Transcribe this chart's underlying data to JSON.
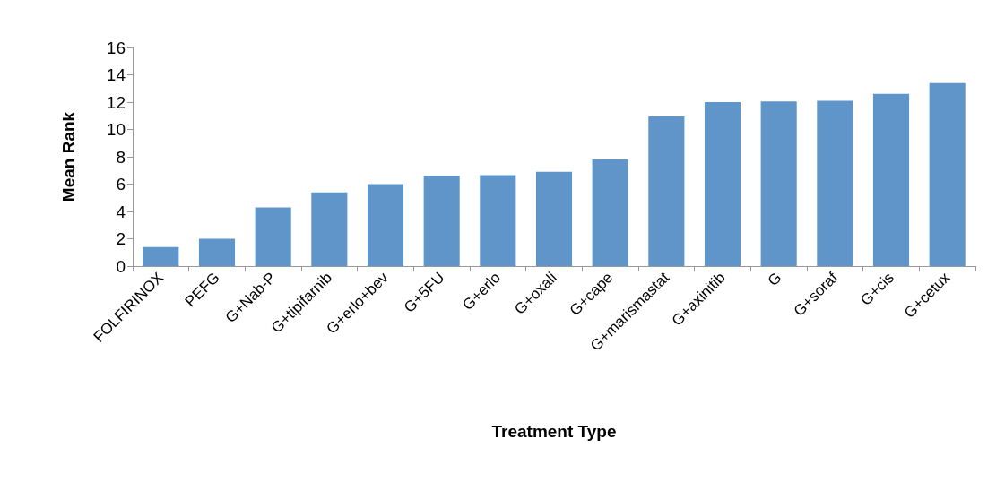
{
  "chart_data": {
    "type": "bar",
    "xlabel": "Treatment Type",
    "ylabel": "Mean Rank",
    "categories": [
      "FOLFIRINOX",
      "PEFG",
      "G+Nab-P",
      "G+tipifarnib",
      "G+erlo+bev",
      "G+5FU",
      "G+erlo",
      "G+oxali",
      "G+cape",
      "G+marismastat",
      "G+axinitib",
      "G",
      "G+soraf",
      "G+cis",
      "G+cetux"
    ],
    "values": [
      1.4,
      2.0,
      4.3,
      5.4,
      6.0,
      6.6,
      6.65,
      6.9,
      7.8,
      10.95,
      12.0,
      12.05,
      12.1,
      12.6,
      13.4
    ],
    "color": "#5f95c9",
    "ylim": [
      0,
      16
    ],
    "yticks": [
      0,
      2,
      4,
      6,
      8,
      10,
      12,
      14,
      16
    ]
  }
}
